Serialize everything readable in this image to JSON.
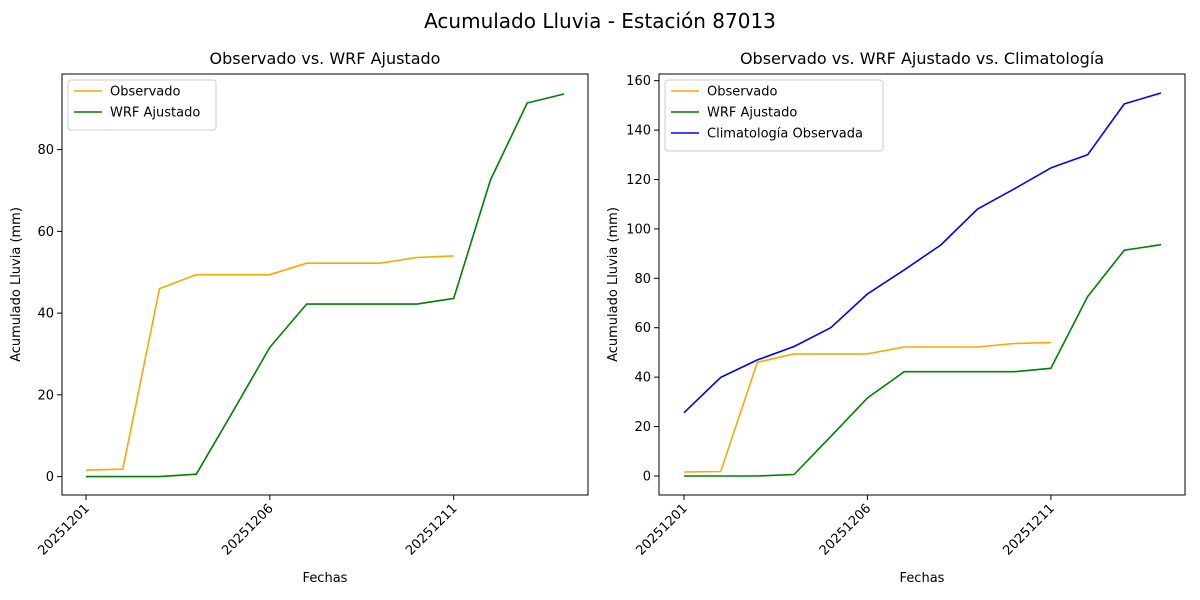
{
  "figure_title": "Acumulado Lluvia - Estación 87013",
  "chart_data": [
    {
      "type": "line",
      "title": "Observado vs. WRF Ajustado",
      "xlabel": "Fechas",
      "ylabel": "Acumulado Lluvia (mm)",
      "x": [
        "20251201",
        "20251202",
        "20251203",
        "20251204",
        "20251205",
        "20251206",
        "20251207",
        "20251208",
        "20251209",
        "20251210",
        "20251211",
        "20251212",
        "20251213",
        "20251214"
      ],
      "x_ticks": [
        "20251201",
        "20251206",
        "20251211"
      ],
      "y_ticks": [
        0,
        20,
        40,
        60,
        80
      ],
      "ylim": [
        -4.5,
        98.5
      ],
      "legend": "upper-left",
      "series": [
        {
          "name": "Observado",
          "color": "#FFA500",
          "values": [
            1.6,
            1.8,
            46.0,
            49.4,
            49.4,
            49.4,
            52.2,
            52.2,
            52.2,
            53.6,
            54.0,
            null,
            null,
            null
          ]
        },
        {
          "name": "WRF Ajustado",
          "color": "#008000",
          "values": [
            0.0,
            0.0,
            0.0,
            0.6,
            16.0,
            31.6,
            42.2,
            42.2,
            42.2,
            42.2,
            43.6,
            72.6,
            91.4,
            93.6
          ]
        }
      ]
    },
    {
      "type": "line",
      "title": "Observado vs. WRF Ajustado vs. Climatología",
      "xlabel": "Fechas",
      "ylabel": "Acumulado Lluvia (mm)",
      "x": [
        "20251201",
        "20251202",
        "20251203",
        "20251204",
        "20251205",
        "20251206",
        "20251207",
        "20251208",
        "20251209",
        "20251210",
        "20251211",
        "20251212",
        "20251213",
        "20251214"
      ],
      "x_ticks": [
        "20251201",
        "20251206",
        "20251211"
      ],
      "y_ticks": [
        0,
        20,
        40,
        60,
        80,
        100,
        120,
        140,
        160
      ],
      "ylim": [
        -7.7,
        162.7
      ],
      "legend": "upper-left",
      "series": [
        {
          "name": "Observado",
          "color": "#FFA500",
          "values": [
            1.6,
            1.8,
            46.0,
            49.4,
            49.4,
            49.4,
            52.2,
            52.2,
            52.2,
            53.6,
            54.0,
            null,
            null,
            null
          ]
        },
        {
          "name": "WRF Ajustado",
          "color": "#008000",
          "values": [
            0.0,
            0.0,
            0.0,
            0.6,
            16.0,
            31.6,
            42.2,
            42.2,
            42.2,
            42.2,
            43.6,
            72.6,
            91.4,
            93.6
          ]
        },
        {
          "name": "Climatología Observada",
          "color": "#0000FF",
          "values": [
            25.6,
            39.9,
            47.0,
            52.4,
            60.0,
            73.7,
            83.4,
            93.5,
            108.0,
            116.2,
            124.7,
            130.0,
            150.6,
            155.0
          ]
        }
      ]
    }
  ]
}
